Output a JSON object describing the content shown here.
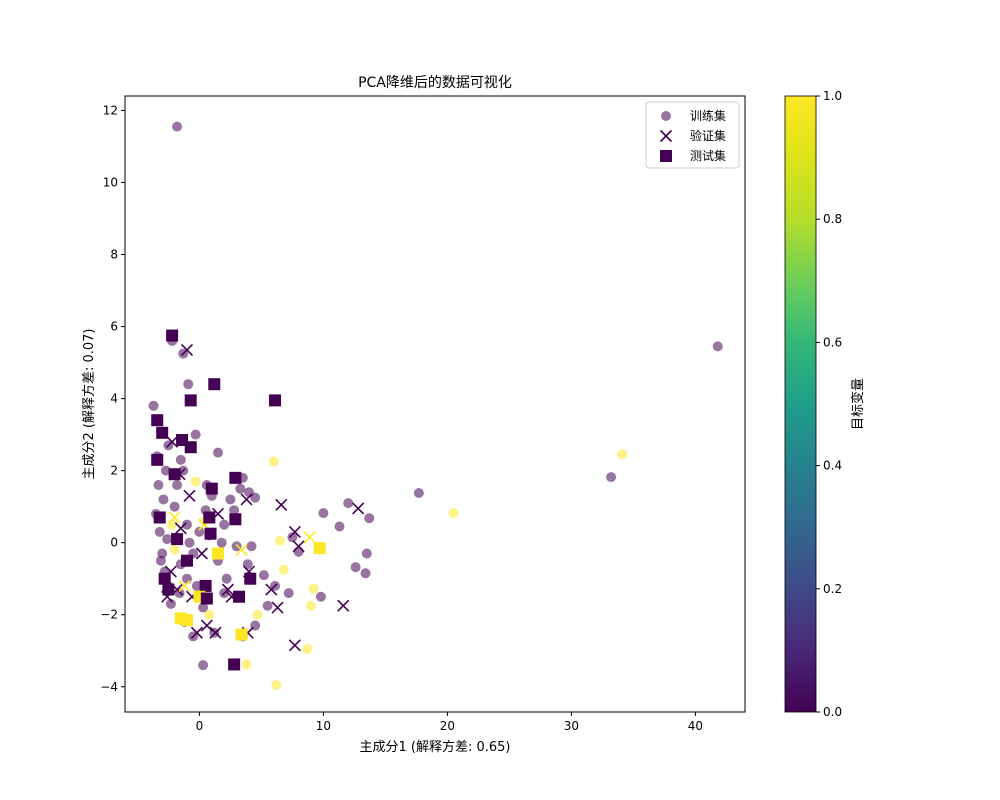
{
  "chart_data": {
    "type": "scatter",
    "title": "PCA降维后的数据可视化",
    "xlabel": "主成分1 (解释方差: 0.65)",
    "ylabel": "主成分2 (解释方差: 0.07)",
    "xlim": [
      -6,
      44
    ],
    "ylim": [
      -4.7,
      12.4
    ],
    "xticks": [
      0,
      10,
      20,
      30,
      40
    ],
    "yticks": [
      -4,
      -2,
      0,
      2,
      4,
      6,
      8,
      10,
      12
    ],
    "grid": false,
    "legend_position": "top-right",
    "colorbar": {
      "label": "目标变量",
      "colormap": "viridis",
      "range": [
        0,
        1
      ],
      "ticks": [
        0.0,
        0.2,
        0.4,
        0.6,
        0.8,
        1.0
      ],
      "tick_labels": [
        "0.0",
        "0.2",
        "0.4",
        "0.6",
        "0.8",
        "1.0"
      ]
    },
    "colors": {
      "class_0": "#440154",
      "class_1": "#fde725"
    },
    "series": [
      {
        "name": "训练集",
        "marker": "circle",
        "opacity": 0.55,
        "points": [
          [
            -1.8,
            11.55,
            0
          ],
          [
            41.8,
            5.45,
            0
          ],
          [
            34.1,
            2.45,
            1
          ],
          [
            33.2,
            1.82,
            0
          ],
          [
            20.5,
            0.82,
            1
          ],
          [
            17.7,
            1.38,
            0
          ],
          [
            12.0,
            1.1,
            0
          ],
          [
            13.7,
            0.68,
            0
          ],
          [
            11.3,
            0.45,
            0
          ],
          [
            10.0,
            0.82,
            0
          ],
          [
            13.5,
            -0.3,
            0
          ],
          [
            12.6,
            -0.68,
            0
          ],
          [
            13.4,
            -0.85,
            0
          ],
          [
            9.8,
            -1.5,
            0
          ],
          [
            9.2,
            -1.28,
            1
          ],
          [
            9.0,
            -1.75,
            1
          ],
          [
            8.7,
            -2.95,
            1
          ],
          [
            6.2,
            -3.95,
            1
          ],
          [
            3.8,
            -3.38,
            1
          ],
          [
            0.3,
            -3.4,
            0
          ],
          [
            6.0,
            2.25,
            1
          ],
          [
            6.5,
            0.05,
            1
          ],
          [
            7.5,
            0.15,
            0
          ],
          [
            8.0,
            -0.25,
            0
          ],
          [
            6.8,
            -0.75,
            1
          ],
          [
            5.5,
            -1.75,
            0
          ],
          [
            4.5,
            -2.3,
            0
          ],
          [
            3.5,
            -2.6,
            0
          ],
          [
            -1.3,
            5.25,
            0
          ],
          [
            -2.2,
            5.6,
            0
          ],
          [
            -0.9,
            4.4,
            0
          ],
          [
            -3.7,
            3.8,
            0
          ],
          [
            -0.3,
            3.0,
            0
          ],
          [
            1.5,
            2.5,
            0
          ],
          [
            -1.5,
            2.3,
            0
          ],
          [
            3.5,
            1.8,
            0
          ],
          [
            4.0,
            1.4,
            0
          ],
          [
            2.5,
            1.2,
            0
          ],
          [
            4.5,
            1.25,
            0
          ],
          [
            -0.3,
            1.7,
            1
          ],
          [
            0.5,
            0.9,
            0
          ],
          [
            1.0,
            1.3,
            0
          ],
          [
            -2.0,
            1.0,
            0
          ],
          [
            -1.0,
            0.5,
            0
          ],
          [
            0.8,
            0.2,
            0
          ],
          [
            2.0,
            0.5,
            0
          ],
          [
            3.0,
            -0.1,
            0
          ],
          [
            4.2,
            -0.1,
            0
          ],
          [
            1.5,
            -0.5,
            0
          ],
          [
            2.2,
            -1.0,
            0
          ],
          [
            0.3,
            -1.8,
            0
          ],
          [
            -1.2,
            -2.2,
            0
          ],
          [
            -0.5,
            -2.6,
            0
          ],
          [
            0.8,
            -2.0,
            1
          ],
          [
            -3.2,
            0.3,
            0
          ],
          [
            -3.0,
            -0.3,
            0
          ],
          [
            -2.8,
            -0.8,
            0
          ],
          [
            -2.5,
            -1.2,
            0
          ],
          [
            -2.3,
            -1.7,
            0
          ],
          [
            -3.3,
            1.6,
            0
          ],
          [
            -2.9,
            1.2,
            0
          ],
          [
            -3.5,
            0.8,
            0
          ],
          [
            -2.0,
            -0.2,
            1
          ],
          [
            -1.5,
            -0.6,
            0
          ],
          [
            -1.0,
            -1.0,
            0
          ],
          [
            -0.5,
            -0.3,
            0
          ],
          [
            0.0,
            0.3,
            0
          ],
          [
            -2.7,
            2.0,
            0
          ],
          [
            -1.8,
            1.6,
            0
          ],
          [
            2.8,
            0.9,
            0
          ],
          [
            3.3,
            1.5,
            0
          ],
          [
            2.0,
            -1.4,
            0
          ],
          [
            1.2,
            -2.5,
            0
          ],
          [
            -0.8,
            0.0,
            0
          ],
          [
            -2.2,
            0.5,
            1
          ],
          [
            -3.1,
            -0.5,
            0
          ],
          [
            -2.6,
            0.1,
            0
          ],
          [
            0.4,
            0.6,
            1
          ],
          [
            5.2,
            -0.9,
            0
          ],
          [
            6.1,
            -1.2,
            0
          ],
          [
            4.7,
            -2.0,
            1
          ],
          [
            7.2,
            -1.4,
            0
          ],
          [
            3.9,
            -0.6,
            0
          ],
          [
            -1.6,
            -1.4,
            0
          ],
          [
            -0.2,
            -1.2,
            0
          ],
          [
            1.8,
            0.0,
            0
          ],
          [
            -3.4,
            2.4,
            0
          ],
          [
            -2.5,
            2.7,
            0
          ],
          [
            -1.3,
            2.0,
            0
          ],
          [
            0.6,
            1.6,
            0
          ]
        ]
      },
      {
        "name": "验证集",
        "marker": "x",
        "opacity": 1.0,
        "points": [
          [
            -1.0,
            5.35,
            0
          ],
          [
            -2.2,
            2.8,
            0
          ],
          [
            -0.8,
            1.3,
            0
          ],
          [
            -1.5,
            0.4,
            0
          ],
          [
            -2.0,
            0.7,
            1
          ],
          [
            -2.3,
            -0.8,
            0
          ],
          [
            -1.8,
            -1.3,
            0
          ],
          [
            -1.2,
            -1.2,
            1
          ],
          [
            -0.6,
            -1.5,
            0
          ],
          [
            0.2,
            -0.3,
            0
          ],
          [
            1.5,
            0.8,
            0
          ],
          [
            2.3,
            -1.3,
            0
          ],
          [
            2.6,
            -1.5,
            0
          ],
          [
            3.4,
            -0.2,
            1
          ],
          [
            3.8,
            1.2,
            0
          ],
          [
            4.0,
            -0.8,
            0
          ],
          [
            3.9,
            -2.5,
            0
          ],
          [
            1.3,
            -2.5,
            0
          ],
          [
            0.6,
            -2.3,
            0
          ],
          [
            -0.2,
            -2.5,
            0
          ],
          [
            5.8,
            -1.3,
            0
          ],
          [
            6.3,
            -1.8,
            0
          ],
          [
            6.6,
            1.05,
            0
          ],
          [
            7.7,
            0.3,
            0
          ],
          [
            8.0,
            -0.1,
            0
          ],
          [
            8.9,
            0.15,
            1
          ],
          [
            12.8,
            0.95,
            0
          ],
          [
            11.6,
            -1.75,
            0
          ],
          [
            7.7,
            -2.85,
            0
          ],
          [
            -2.6,
            -1.5,
            0
          ],
          [
            0.4,
            0.5,
            1
          ],
          [
            -1.6,
            1.9,
            0
          ]
        ]
      },
      {
        "name": "测试集",
        "marker": "square",
        "opacity": 1.0,
        "points": [
          [
            -2.2,
            5.75,
            0
          ],
          [
            1.2,
            4.4,
            0
          ],
          [
            -0.7,
            3.95,
            0
          ],
          [
            6.1,
            3.95,
            0
          ],
          [
            -3.4,
            3.4,
            0
          ],
          [
            -3.0,
            3.05,
            0
          ],
          [
            -1.4,
            2.85,
            0
          ],
          [
            -0.7,
            2.65,
            0
          ],
          [
            -3.4,
            2.3,
            0
          ],
          [
            -2.0,
            1.9,
            0
          ],
          [
            2.9,
            1.8,
            0
          ],
          [
            1.0,
            1.5,
            0
          ],
          [
            0.8,
            0.7,
            0
          ],
          [
            2.9,
            0.65,
            0
          ],
          [
            0.9,
            0.25,
            0
          ],
          [
            9.7,
            -0.15,
            1
          ],
          [
            1.5,
            -0.3,
            1
          ],
          [
            -1.0,
            -0.5,
            0
          ],
          [
            0.5,
            -1.2,
            0
          ],
          [
            -2.5,
            -1.3,
            0
          ],
          [
            0.0,
            -1.5,
            1
          ],
          [
            0.6,
            -1.55,
            0
          ],
          [
            3.2,
            -1.5,
            0
          ],
          [
            4.1,
            -1.0,
            0
          ],
          [
            3.4,
            -2.55,
            1
          ],
          [
            -1.0,
            -2.15,
            1
          ],
          [
            -1.5,
            -2.1,
            1
          ],
          [
            -2.8,
            -1.0,
            0
          ],
          [
            2.8,
            -3.38,
            0
          ],
          [
            -3.2,
            0.7,
            0
          ],
          [
            -1.8,
            0.1,
            0
          ]
        ]
      }
    ]
  }
}
